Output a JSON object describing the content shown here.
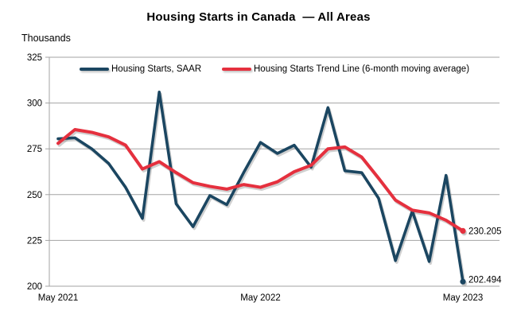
{
  "title": "Housing Starts in Canada  — All Areas",
  "y_axis_unit_label": "Thousands",
  "legend": [
    {
      "label": "Housing Starts, SAAR",
      "series": "saar"
    },
    {
      "label": "Housing Starts Trend Line (6-month moving average)",
      "series": "trend"
    }
  ],
  "end_labels": {
    "saar": "202.494",
    "trend": "230.205"
  },
  "colors": {
    "saar": "#1b4661",
    "trend": "#e5303e",
    "grid": "#a3a3a3",
    "axis": "#a3a3a3",
    "text": "#000000",
    "shadow": "#8a8a8a"
  },
  "chart_data": {
    "type": "line",
    "title": "Housing Starts in Canada — All Areas",
    "ylabel": "Thousands",
    "ylim": [
      200,
      325
    ],
    "y_ticks": [
      200,
      225,
      250,
      275,
      300,
      325
    ],
    "grid": "horizontal",
    "legend_position": "top-inside",
    "x": [
      "May 2021",
      "Jun 2021",
      "Jul 2021",
      "Aug 2021",
      "Sep 2021",
      "Oct 2021",
      "Nov 2021",
      "Dec 2021",
      "Jan 2022",
      "Feb 2022",
      "Mar 2022",
      "Apr 2022",
      "May 2022",
      "Jun 2022",
      "Jul 2022",
      "Aug 2022",
      "Sep 2022",
      "Oct 2022",
      "Nov 2022",
      "Dec 2022",
      "Jan 2023",
      "Feb 2023",
      "Mar 2023",
      "Apr 2023",
      "May 2023"
    ],
    "visible_x_ticks": [
      {
        "index": 0,
        "label": "May 2021"
      },
      {
        "index": 12,
        "label": "May 2022"
      },
      {
        "index": 24,
        "label": "May 2023"
      }
    ],
    "series": [
      {
        "name": "Housing Starts, SAAR",
        "key": "saar",
        "values": [
          280.5,
          281,
          275,
          267,
          254,
          237,
          306,
          245,
          232.5,
          249.5,
          244.5,
          262,
          278.5,
          272.5,
          277,
          265,
          297.5,
          263,
          262,
          248,
          214,
          241,
          213.5,
          260.5,
          202.494
        ],
        "end_label": "202.494"
      },
      {
        "name": "Housing Starts Trend Line (6-month moving average)",
        "key": "trend",
        "values": [
          278,
          285.5,
          284,
          281.5,
          277,
          264,
          268,
          262,
          256.5,
          254.5,
          253,
          255.5,
          254,
          257,
          262.5,
          266,
          275,
          276,
          270.5,
          259,
          247,
          241.5,
          240,
          236,
          230.205
        ],
        "end_label": "230.205"
      }
    ]
  }
}
